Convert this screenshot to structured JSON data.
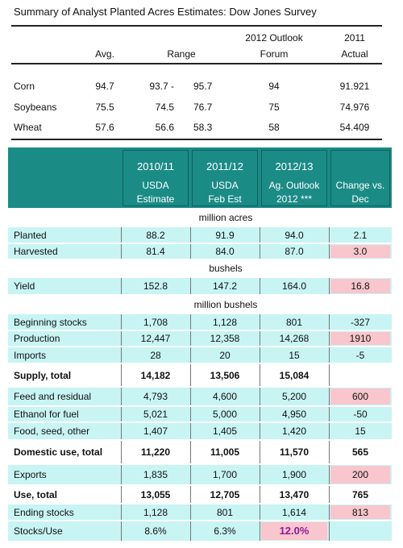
{
  "summary": {
    "title": "Summary of Analyst Planted Acres Estimates: Dow Jones Survey",
    "header": [
      {
        "line2": "Avg."
      },
      {
        "line2": "Range"
      },
      {
        "line1": "2012 Outlook",
        "line2": "Forum"
      },
      {
        "line1": "2011",
        "line2": "Actual"
      }
    ],
    "rows": [
      {
        "label": "Corn",
        "avg": "94.7",
        "low": "93.7 -",
        "high": "95.7",
        "forum": "94",
        "actual": "91.921"
      },
      {
        "label": "Soybeans",
        "avg": "75.5",
        "low": "74.5",
        "high": "76.7",
        "forum": "75",
        "actual": "74.976"
      },
      {
        "label": "Wheat",
        "avg": "57.6",
        "low": "56.6",
        "high": "58.3",
        "forum": "58",
        "actual": "54.409"
      }
    ]
  },
  "balance": {
    "header": [
      {
        "year": "2010/11",
        "source": "USDA",
        "detail": "Estimate"
      },
      {
        "year": "2011/12",
        "source": "USDA",
        "detail": "Feb Est"
      },
      {
        "year": "2012/13",
        "source": "Ag. Outlook",
        "detail": "2012 ***"
      },
      {
        "source": "Change vs.",
        "detail": "Dec"
      }
    ],
    "rows": [
      {
        "section": "million acres"
      },
      {
        "label": "Planted",
        "cells": [
          "88.2",
          "91.9",
          "94.0",
          "2.1"
        ]
      },
      {
        "label": "Harvested",
        "cells": [
          "81.4",
          "84.0",
          "87.0",
          "3.0"
        ]
      },
      {
        "section": "bushels"
      },
      {
        "label": "Yield",
        "cells": [
          "152.8",
          "147.2",
          "164.0",
          "16.8"
        ]
      },
      {
        "section": "million bushels"
      },
      {
        "label": "Beginning stocks",
        "cells": [
          "1,708",
          "1,128",
          "801",
          "-327"
        ]
      },
      {
        "label": "Production",
        "cells": [
          "12,447",
          "12,358",
          "14,268",
          "1910"
        ]
      },
      {
        "label": "Imports",
        "cells": [
          "28",
          "20",
          "15",
          "-5"
        ]
      },
      {
        "label": "Supply, total",
        "cells": [
          "14,182",
          "13,506",
          "15,084",
          null
        ]
      },
      {
        "label": "Feed and residual",
        "cells": [
          "4,793",
          "4,600",
          "5,200",
          "600"
        ]
      },
      {
        "label": "Ethanol for fuel",
        "cells": [
          "5,021",
          "5,000",
          "4,950",
          "-50"
        ]
      },
      {
        "label": "Food, seed, other",
        "cells": [
          "1,407",
          "1,405",
          "1,420",
          "15"
        ]
      },
      {
        "label": "Domestic use, total",
        "cells": [
          "11,220",
          "11,005",
          "11,570",
          "565"
        ]
      },
      {
        "label": "Exports",
        "cells": [
          "1,835",
          "1,700",
          "1,900",
          "200"
        ]
      },
      {
        "label": "Use, total",
        "cells": [
          "13,055",
          "12,705",
          "13,470",
          "765"
        ]
      },
      {
        "label": "Ending stocks",
        "cells": [
          "1,128",
          "801",
          "1,614",
          "813"
        ]
      },
      {
        "label": "Stocks/Use",
        "cells": [
          "8.6%",
          "6.3%",
          "12.0%",
          null
        ]
      }
    ]
  }
}
